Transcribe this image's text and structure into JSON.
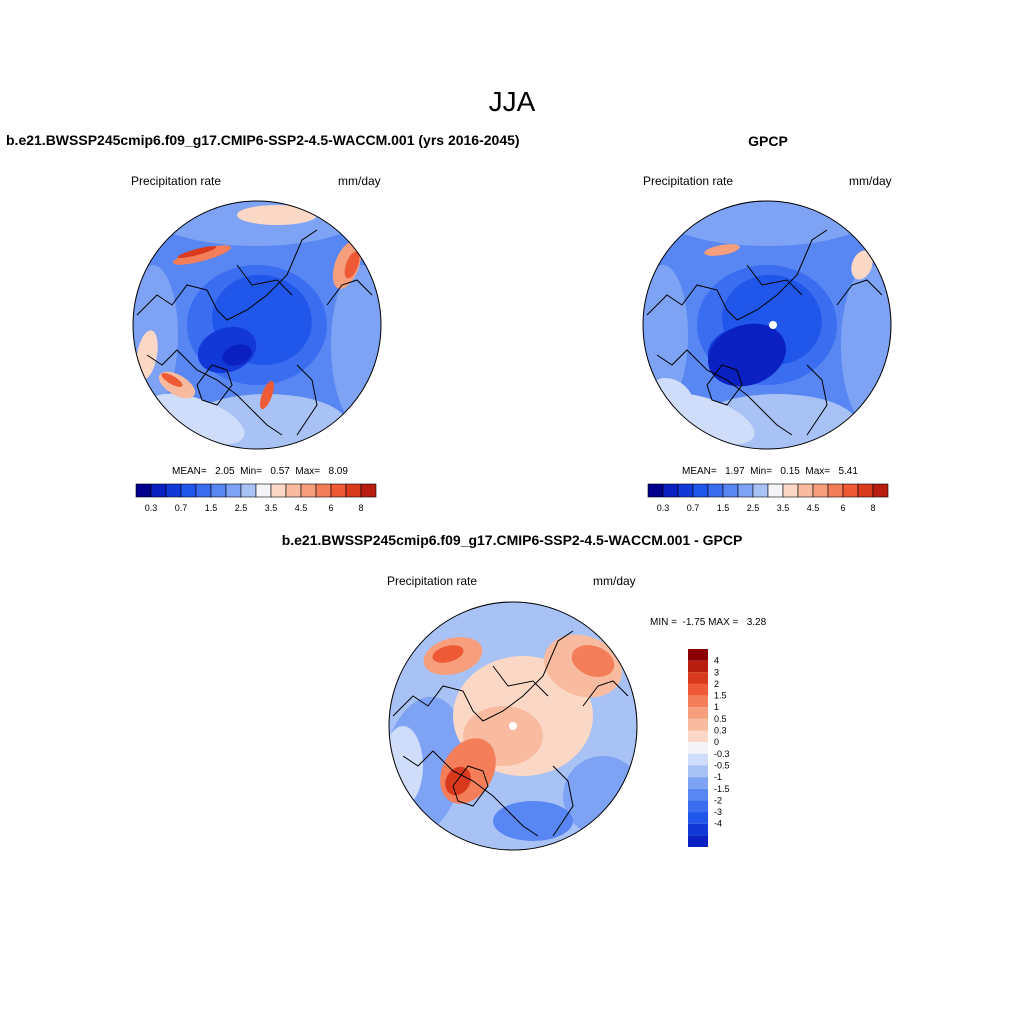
{
  "figure": {
    "season": "JJA",
    "panel_model_title": "b.e21.BWSSP245cmip6.f09_g17.CMIP6-SSP2-4.5-WACCM.001 (yrs 2016-2045)",
    "panel_obs_title": "GPCP",
    "panel_diff_title": "b.e21.BWSSP245cmip6.f09_g17.CMIP6-SSP2-4.5-WACCM.001 - GPCP"
  },
  "colors": {
    "blue_ramp": [
      "#00008c",
      "#0a20c0",
      "#1238d8",
      "#2156ea",
      "#3a6df0",
      "#5886f2",
      "#7ea3f4",
      "#a8c2f6",
      "#cfdcfa"
    ],
    "white": "#f4f4f8",
    "red_ramp": [
      "#fbd7c6",
      "#f9bba0",
      "#f79e7c",
      "#f47e5a",
      "#ee5a36",
      "#d93a1e",
      "#b81e10",
      "#8b0000"
    ]
  },
  "chart_data": [
    {
      "type": "map",
      "projection": "north polar stereographic",
      "variable": "Precipitation rate",
      "units": "mm/day",
      "stats_text": "MEAN=   2.05  Min=   0.57  Max=   8.09",
      "stats": {
        "mean": 2.05,
        "min": 0.57,
        "max": 8.09
      },
      "colorbar_labels": [
        "0.3",
        "0.7",
        "1.5",
        "2.5",
        "3.5",
        "4.5",
        "6",
        "8"
      ],
      "colorbar_levels": [
        0.2,
        0.3,
        0.5,
        0.7,
        1,
        1.5,
        2,
        2.5,
        3,
        3.5,
        4,
        4.5,
        5,
        6,
        7,
        8
      ]
    },
    {
      "type": "map",
      "projection": "north polar stereographic",
      "variable": "Precipitation rate",
      "units": "mm/day",
      "stats_text": "MEAN=   1.97  Min=   0.15  Max=   5.41",
      "stats": {
        "mean": 1.97,
        "min": 0.15,
        "max": 5.41
      },
      "colorbar_labels": [
        "0.3",
        "0.7",
        "1.5",
        "2.5",
        "3.5",
        "4.5",
        "6",
        "8"
      ],
      "colorbar_levels": [
        0.2,
        0.3,
        0.5,
        0.7,
        1,
        1.5,
        2,
        2.5,
        3,
        3.5,
        4,
        4.5,
        5,
        6,
        7,
        8
      ]
    },
    {
      "type": "map",
      "projection": "north polar stereographic",
      "variable": "Precipitation rate",
      "units": "mm/day",
      "stats_text": "MIN =  -1.75 MAX =   3.28",
      "stats": {
        "min": -1.75,
        "max": 3.28
      },
      "colorbar_labels": [
        "4",
        "3",
        "2",
        "1.5",
        "1",
        "0.5",
        "0.3",
        "0",
        "-0.3",
        "-0.5",
        "-1",
        "-1.5",
        "-2",
        "-3",
        "-4"
      ]
    }
  ]
}
